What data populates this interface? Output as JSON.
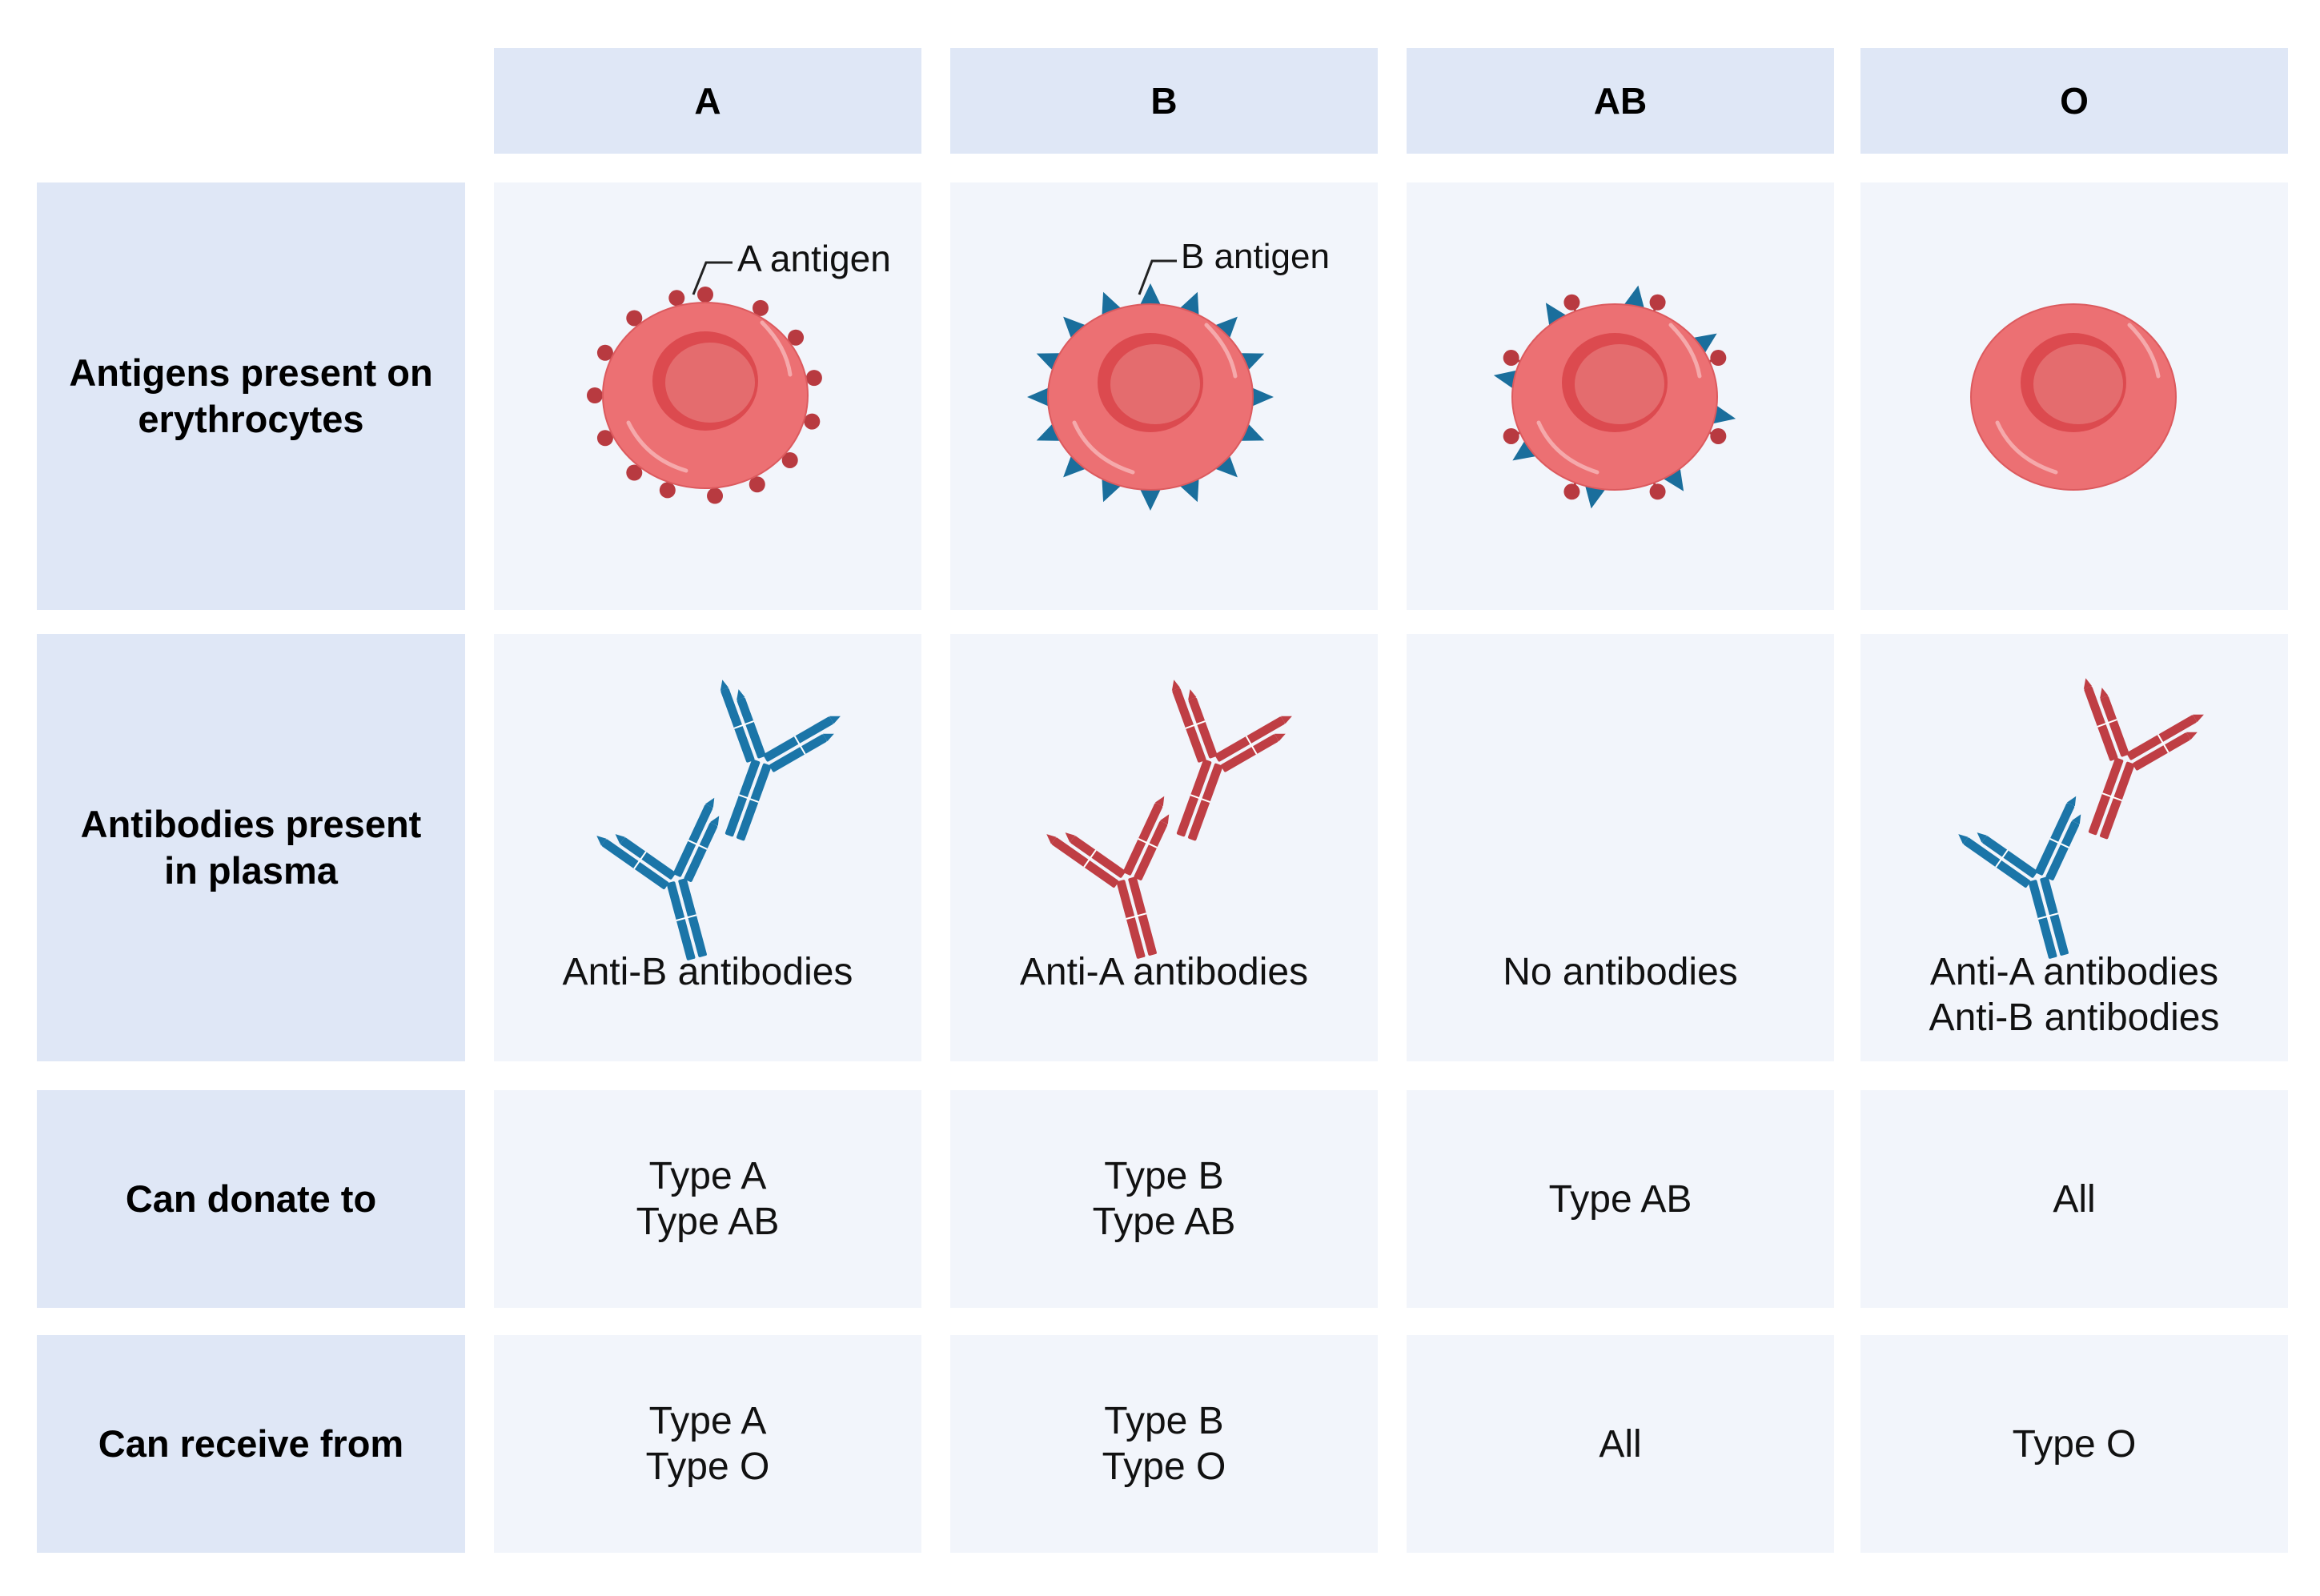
{
  "columns": [
    {
      "name": "A"
    },
    {
      "name": "B"
    },
    {
      "name": "AB"
    },
    {
      "name": "O"
    }
  ],
  "rows": [
    {
      "label_lines": [
        "Antigens present on",
        "erythrocytes"
      ]
    },
    {
      "label_lines": [
        "Antibodies present",
        "in plasma"
      ]
    },
    {
      "label_lines": [
        "Can donate to"
      ]
    },
    {
      "label_lines": [
        "Can receive from"
      ]
    }
  ],
  "antigen_labels": {
    "a": "A antigen",
    "b": "B antigen"
  },
  "antibodies": [
    {
      "lines": [
        "Anti-B antibodies"
      ]
    },
    {
      "lines": [
        "Anti-A antibodies"
      ]
    },
    {
      "lines": [
        "No antibodies"
      ]
    },
    {
      "lines": [
        "Anti-A antibodies",
        "Anti-B antibodies"
      ]
    }
  ],
  "donate_to": [
    {
      "lines": [
        "Type A",
        "Type AB"
      ]
    },
    {
      "lines": [
        "Type B",
        "Type AB"
      ]
    },
    {
      "lines": [
        "Type AB"
      ]
    },
    {
      "lines": [
        "All"
      ]
    }
  ],
  "receive_from": [
    {
      "lines": [
        "Type A",
        "Type O"
      ]
    },
    {
      "lines": [
        "Type B",
        "Type O"
      ]
    },
    {
      "lines": [
        "All"
      ]
    },
    {
      "lines": [
        "Type O"
      ]
    }
  ],
  "colors": {
    "header_bg": "#dfe7f6",
    "cell_bg": "#f2f5fb",
    "cell_red": "#ec7073",
    "cell_center": "#dc4a4f",
    "a_antigen": "#b83a40",
    "b_antigen": "#1a6e9c",
    "anti_b_antibody": "#1b75a8",
    "anti_a_antibody": "#bf3e44"
  }
}
